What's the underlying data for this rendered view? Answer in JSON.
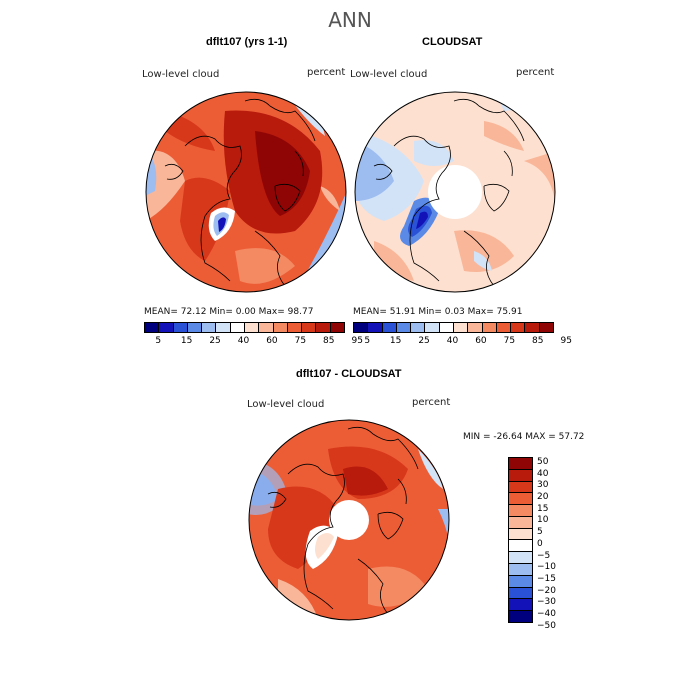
{
  "title": "ANN",
  "panel1": {
    "title": "dflt107 (yrs 1-1)",
    "left_label": "Low-level cloud",
    "right_label": "percent",
    "stats": "MEAN=  72.12  Min=   0.00  Max=  98.77"
  },
  "panel2": {
    "title": "CLOUDSAT",
    "left_label": "Low-level cloud",
    "right_label": "percent",
    "stats": "MEAN=  51.91  Min=   0.03  Max=  75.91"
  },
  "panel3": {
    "title": "dflt107 - CLOUDSAT",
    "left_label": "Low-level cloud",
    "right_label": "percent",
    "stats": "MIN = -26.64 MAX =  57.72"
  },
  "colorbar_top": {
    "colors": [
      "#00007f",
      "#1212b8",
      "#2a52d6",
      "#5a8ae6",
      "#9dbcf0",
      "#d2e3f7",
      "#ffffff",
      "#fde0cf",
      "#f9b699",
      "#f48a62",
      "#ec5d36",
      "#d8381a",
      "#b81a0c",
      "#8f0505"
    ],
    "ticks": [
      "5",
      "15",
      "25",
      "40",
      "60",
      "75",
      "85",
      "95"
    ]
  },
  "colorbar_diff": {
    "colors": [
      "#8f0505",
      "#b81a0c",
      "#d8381a",
      "#ec5d36",
      "#f48a62",
      "#f9b699",
      "#fde0cf",
      "#ffffff",
      "#d2e3f7",
      "#9dbcf0",
      "#5a8ae6",
      "#2a52d6",
      "#1212b8",
      "#00007f"
    ],
    "ticks": [
      "50",
      "40",
      "30",
      "20",
      "15",
      "10",
      "5",
      "0",
      "−5",
      "−10",
      "−15",
      "−20",
      "−30",
      "−40",
      "−50"
    ]
  }
}
